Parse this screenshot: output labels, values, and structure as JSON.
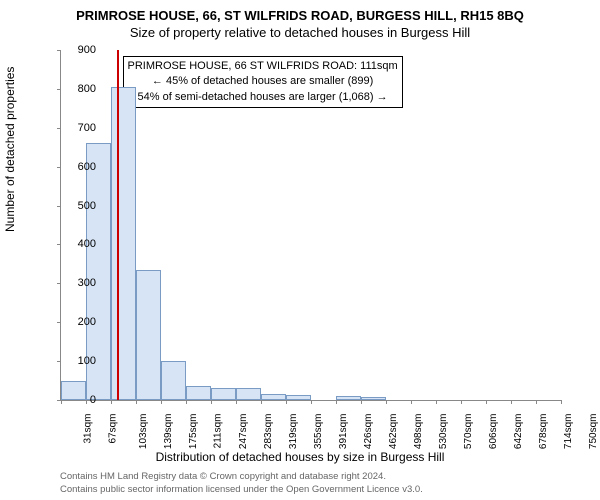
{
  "title": "PRIMROSE HOUSE, 66, ST WILFRIDS ROAD, BURGESS HILL, RH15 8BQ",
  "subtitle": "Size of property relative to detached houses in Burgess Hill",
  "ylabel": "Number of detached properties",
  "xlabel": "Distribution of detached houses by size in Burgess Hill",
  "chart": {
    "type": "histogram",
    "background_color": "#ffffff",
    "bar_fill": "#d6e4f5",
    "bar_border": "#7a9bc4",
    "axis_color": "#888888",
    "ref_line_color": "#cc0000",
    "ylim": [
      0,
      900
    ],
    "ytick_step": 100,
    "xtick_labels": [
      "31sqm",
      "67sqm",
      "103sqm",
      "139sqm",
      "175sqm",
      "211sqm",
      "247sqm",
      "283sqm",
      "319sqm",
      "355sqm",
      "391sqm",
      "426sqm",
      "462sqm",
      "498sqm",
      "530sqm",
      "570sqm",
      "606sqm",
      "642sqm",
      "678sqm",
      "714sqm",
      "750sqm"
    ],
    "bars": [
      {
        "value": 50
      },
      {
        "value": 660
      },
      {
        "value": 805
      },
      {
        "value": 335
      },
      {
        "value": 100
      },
      {
        "value": 35
      },
      {
        "value": 30
      },
      {
        "value": 30
      },
      {
        "value": 15
      },
      {
        "value": 12
      },
      {
        "value": 0
      },
      {
        "value": 10
      },
      {
        "value": 8
      },
      {
        "value": 0
      },
      {
        "value": 0
      },
      {
        "value": 0
      },
      {
        "value": 0
      },
      {
        "value": 0
      },
      {
        "value": 0
      },
      {
        "value": 0
      }
    ],
    "ref_line_bin_index": 2,
    "ref_line_pos_in_bin": 0.22,
    "bar_gap_ratio": 0.0
  },
  "info_box": {
    "line1": "PRIMROSE HOUSE, 66 ST WILFRIDS ROAD: 111sqm",
    "line2": "← 45% of detached houses are smaller (899)",
    "line3": "54% of semi-detached houses are larger (1,068) →",
    "border_color": "#000000",
    "fontsize": 11
  },
  "attribution": {
    "line1": "Contains HM Land Registry data © Crown copyright and database right 2024.",
    "line2": "Contains public sector information licensed under the Open Government Licence v3.0."
  }
}
